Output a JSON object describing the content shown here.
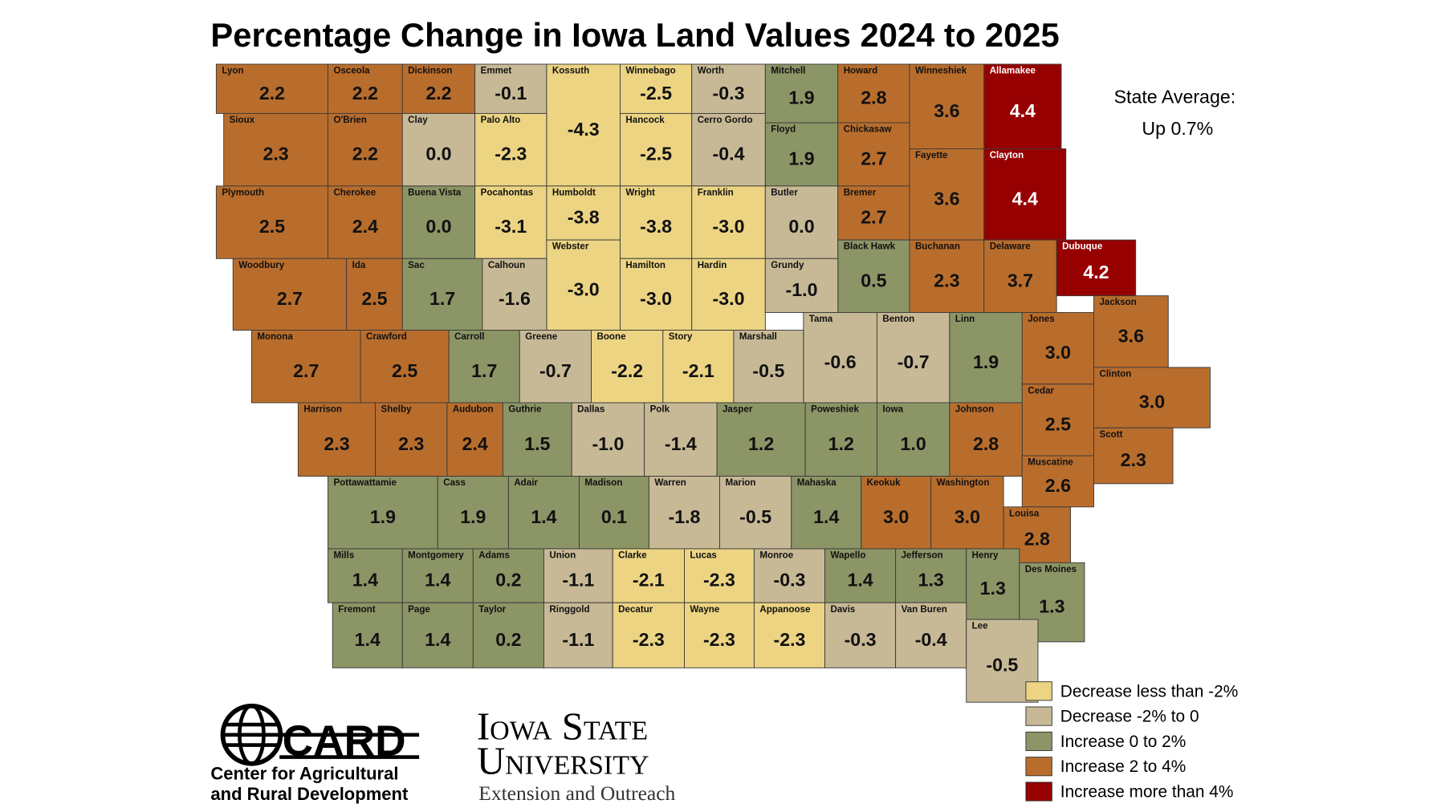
{
  "title": "Percentage Change in Iowa Land Values 2024 to 2025",
  "state_average": {
    "label": "State Average:",
    "value_text": "Up 0.7%"
  },
  "legend": [
    {
      "label": "Decrease less than -2%",
      "color": "#ecd483"
    },
    {
      "label": "Decrease -2% to 0",
      "color": "#c8b996"
    },
    {
      "label": "Increase 0 to 2%",
      "color": "#8b9566"
    },
    {
      "label": "Increase 2 to 4%",
      "color": "#b96d2c"
    },
    {
      "label": "Increase more than 4%",
      "color": "#960000"
    }
  ],
  "logos": {
    "card": {
      "name": "CARD",
      "line1": "Center for Agricultural",
      "line2": "and Rural Development"
    },
    "isu": {
      "line1": "Iowa State",
      "line2": "University",
      "line3": "Extension and Outreach"
    }
  },
  "counties": [
    {
      "name": "Lyon",
      "value": 2.2,
      "color": "#b96d2c"
    },
    {
      "name": "Osceola",
      "value": 2.2,
      "color": "#b96d2c"
    },
    {
      "name": "Dickinson",
      "value": 2.2,
      "color": "#b96d2c"
    },
    {
      "name": "Emmet",
      "value": -0.1,
      "color": "#c8b996"
    },
    {
      "name": "Kossuth",
      "value": -4.3,
      "color": "#ecd483"
    },
    {
      "name": "Winnebago",
      "value": -2.5,
      "color": "#ecd483"
    },
    {
      "name": "Worth",
      "value": -0.3,
      "color": "#c8b996"
    },
    {
      "name": "Mitchell",
      "value": 1.9,
      "color": "#8b9566"
    },
    {
      "name": "Howard",
      "value": 2.8,
      "color": "#b96d2c"
    },
    {
      "name": "Winneshiek",
      "value": 3.6,
      "color": "#b96d2c"
    },
    {
      "name": "Allamakee",
      "value": 4.4,
      "color": "#960000"
    },
    {
      "name": "Sioux",
      "value": 2.3,
      "color": "#b96d2c"
    },
    {
      "name": "O'Brien",
      "value": 2.2,
      "color": "#b96d2c"
    },
    {
      "name": "Clay",
      "value": 0,
      "value_label": "0.0",
      "color": "#c8b996"
    },
    {
      "name": "Palo Alto",
      "value": -2.3,
      "color": "#ecd483"
    },
    {
      "name": "Hancock",
      "value": -2.5,
      "color": "#ecd483"
    },
    {
      "name": "Cerro Gordo",
      "value": -0.4,
      "color": "#c8b996"
    },
    {
      "name": "Floyd",
      "value": 1.9,
      "color": "#8b9566"
    },
    {
      "name": "Chickasaw",
      "value": 2.7,
      "color": "#b96d2c"
    },
    {
      "name": "Fayette",
      "value": 3.6,
      "color": "#b96d2c"
    },
    {
      "name": "Clayton",
      "value": 4.4,
      "color": "#960000"
    },
    {
      "name": "Plymouth",
      "value": 2.5,
      "color": "#b96d2c"
    },
    {
      "name": "Cherokee",
      "value": 2.4,
      "color": "#b96d2c"
    },
    {
      "name": "Buena Vista",
      "value": 0,
      "value_label": "0.0",
      "color": "#8b9566"
    },
    {
      "name": "Pocahontas",
      "value": -3.1,
      "color": "#ecd483"
    },
    {
      "name": "Humboldt",
      "value": -3.8,
      "color": "#ecd483"
    },
    {
      "name": "Wright",
      "value": -3.8,
      "color": "#ecd483"
    },
    {
      "name": "Franklin",
      "value": -3,
      "value_label": "-3.0",
      "color": "#ecd483"
    },
    {
      "name": "Butler",
      "value": 0,
      "value_label": "0.0",
      "color": "#c8b996"
    },
    {
      "name": "Bremer",
      "value": 2.7,
      "color": "#b96d2c"
    },
    {
      "name": "Webster",
      "value": -3,
      "value_label": "-3.0",
      "color": "#ecd483"
    },
    {
      "name": "Black Hawk",
      "value": 0.5,
      "color": "#8b9566"
    },
    {
      "name": "Buchanan",
      "value": 2.3,
      "color": "#b96d2c"
    },
    {
      "name": "Delaware",
      "value": 3.7,
      "color": "#b96d2c"
    },
    {
      "name": "Dubuque",
      "value": 4.2,
      "color": "#960000"
    },
    {
      "name": "Woodbury",
      "value": 2.7,
      "color": "#b96d2c"
    },
    {
      "name": "Ida",
      "value": 2.5,
      "color": "#b96d2c"
    },
    {
      "name": "Sac",
      "value": 1.7,
      "color": "#8b9566"
    },
    {
      "name": "Calhoun",
      "value": -1.6,
      "color": "#c8b996"
    },
    {
      "name": "Hamilton",
      "value": -3,
      "value_label": "-3.0",
      "color": "#ecd483"
    },
    {
      "name": "Hardin",
      "value": -3,
      "value_label": "-3.0",
      "color": "#ecd483"
    },
    {
      "name": "Grundy",
      "value": -1,
      "value_label": "-1.0",
      "color": "#c8b996"
    },
    {
      "name": "Tama",
      "value": -0.6,
      "color": "#c8b996"
    },
    {
      "name": "Benton",
      "value": -0.7,
      "color": "#c8b996"
    },
    {
      "name": "Linn",
      "value": 1.9,
      "color": "#8b9566"
    },
    {
      "name": "Jones",
      "value": 3,
      "value_label": "3.0",
      "color": "#b96d2c"
    },
    {
      "name": "Jackson",
      "value": 3.6,
      "color": "#b96d2c"
    },
    {
      "name": "Monona",
      "value": 2.7,
      "color": "#b96d2c"
    },
    {
      "name": "Crawford",
      "value": 2.5,
      "color": "#b96d2c"
    },
    {
      "name": "Carroll",
      "value": 1.7,
      "color": "#8b9566"
    },
    {
      "name": "Greene",
      "value": -0.7,
      "color": "#c8b996"
    },
    {
      "name": "Boone",
      "value": -2.2,
      "color": "#ecd483"
    },
    {
      "name": "Story",
      "value": -2.1,
      "color": "#ecd483"
    },
    {
      "name": "Marshall",
      "value": -0.5,
      "color": "#c8b996"
    },
    {
      "name": "Clinton",
      "value": 3,
      "value_label": "3.0",
      "color": "#b96d2c"
    },
    {
      "name": "Cedar",
      "value": 2.5,
      "color": "#b96d2c"
    },
    {
      "name": "Harrison",
      "value": 2.3,
      "color": "#b96d2c"
    },
    {
      "name": "Shelby",
      "value": 2.3,
      "color": "#b96d2c"
    },
    {
      "name": "Audubon",
      "value": 2.4,
      "color": "#b96d2c"
    },
    {
      "name": "Guthrie",
      "value": 1.5,
      "color": "#8b9566"
    },
    {
      "name": "Dallas",
      "value": -1,
      "value_label": "-1.0",
      "color": "#c8b996"
    },
    {
      "name": "Polk",
      "value": -1.4,
      "color": "#c8b996"
    },
    {
      "name": "Jasper",
      "value": 1.2,
      "color": "#8b9566"
    },
    {
      "name": "Poweshiek",
      "value": 1.2,
      "color": "#8b9566"
    },
    {
      "name": "Iowa",
      "value": 1,
      "value_label": "1.0",
      "color": "#8b9566"
    },
    {
      "name": "Johnson",
      "value": 2.8,
      "color": "#b96d2c"
    },
    {
      "name": "Scott",
      "value": 2.3,
      "color": "#b96d2c"
    },
    {
      "name": "Muscatine",
      "value": 2.6,
      "color": "#b96d2c"
    },
    {
      "name": "Pottawattamie",
      "value": 1.9,
      "color": "#8b9566"
    },
    {
      "name": "Cass",
      "value": 1.9,
      "color": "#8b9566"
    },
    {
      "name": "Adair",
      "value": 1.4,
      "color": "#8b9566"
    },
    {
      "name": "Madison",
      "value": 0.1,
      "color": "#8b9566"
    },
    {
      "name": "Warren",
      "value": -1.8,
      "color": "#c8b996"
    },
    {
      "name": "Marion",
      "value": -0.5,
      "color": "#c8b996"
    },
    {
      "name": "Mahaska",
      "value": 1.4,
      "color": "#8b9566"
    },
    {
      "name": "Keokuk",
      "value": 3,
      "value_label": "3.0",
      "color": "#b96d2c"
    },
    {
      "name": "Washington",
      "value": 3,
      "value_label": "3.0",
      "color": "#b96d2c"
    },
    {
      "name": "Louisa",
      "value": 2.8,
      "color": "#b96d2c"
    },
    {
      "name": "Mills",
      "value": 1.4,
      "color": "#8b9566"
    },
    {
      "name": "Montgomery",
      "value": 1.4,
      "color": "#8b9566"
    },
    {
      "name": "Adams",
      "value": 0.2,
      "color": "#8b9566"
    },
    {
      "name": "Union",
      "value": -1.1,
      "color": "#c8b996"
    },
    {
      "name": "Clarke",
      "value": -2.1,
      "color": "#ecd483"
    },
    {
      "name": "Lucas",
      "value": -2.3,
      "color": "#ecd483"
    },
    {
      "name": "Monroe",
      "value": -0.3,
      "color": "#c8b996"
    },
    {
      "name": "Wapello",
      "value": 1.4,
      "color": "#8b9566"
    },
    {
      "name": "Jefferson",
      "value": 1.3,
      "color": "#8b9566"
    },
    {
      "name": "Henry",
      "value": 1.3,
      "color": "#8b9566"
    },
    {
      "name": "Des Moines",
      "value": 1.3,
      "color": "#8b9566"
    },
    {
      "name": "Fremont",
      "value": 1.4,
      "color": "#8b9566"
    },
    {
      "name": "Page",
      "value": 1.4,
      "color": "#8b9566"
    },
    {
      "name": "Taylor",
      "value": 0.2,
      "color": "#8b9566"
    },
    {
      "name": "Ringgold",
      "value": -1.1,
      "color": "#c8b996"
    },
    {
      "name": "Decatur",
      "value": -2.3,
      "color": "#ecd483"
    },
    {
      "name": "Wayne",
      "value": -2.3,
      "color": "#ecd483"
    },
    {
      "name": "Appanoose",
      "value": -2.3,
      "color": "#ecd483"
    },
    {
      "name": "Davis",
      "value": -0.3,
      "color": "#c8b996"
    },
    {
      "name": "Van Buren",
      "value": -0.4,
      "color": "#c8b996"
    },
    {
      "name": "Lee",
      "value": -0.5,
      "color": "#c8b996"
    }
  ]
}
